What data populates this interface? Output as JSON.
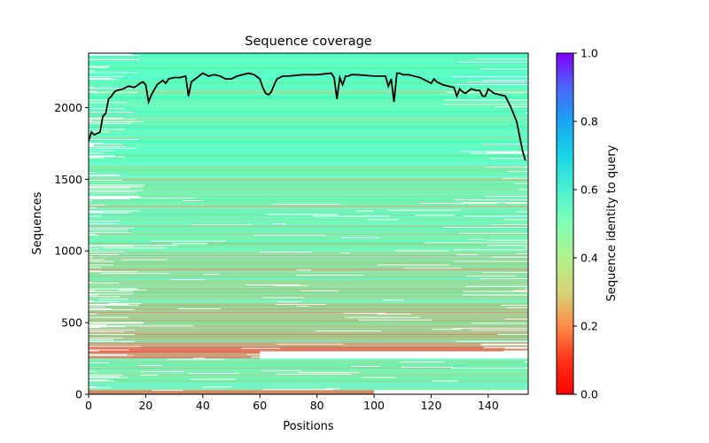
{
  "chart_data": {
    "type": "heatmap",
    "title": "Sequence coverage",
    "xlabel": "Positions",
    "ylabel": "Sequences",
    "xlim": [
      0,
      154
    ],
    "ylim": [
      0,
      2380
    ],
    "xticks": [
      0,
      20,
      40,
      60,
      80,
      100,
      120,
      140
    ],
    "yticks": [
      0,
      500,
      1000,
      1500,
      2000
    ],
    "grid": false,
    "colorbar": {
      "label": "Sequence identity to query",
      "colormap": "rainbow_r",
      "range": [
        0.0,
        1.0
      ],
      "ticks": [
        "0.0",
        "0.2",
        "0.4",
        "0.6",
        "0.8",
        "1.0"
      ],
      "placement": "right"
    },
    "identity_bands": [
      {
        "from": 0,
        "to": 30,
        "identity": 0.12,
        "span": [
          0,
          100
        ],
        "note": "short low-identity fragments at bottom"
      },
      {
        "from": 30,
        "to": 240,
        "identity": 0.36,
        "span": [
          0,
          154
        ]
      },
      {
        "from": 240,
        "to": 250,
        "identity": 0.55,
        "span": [
          0,
          154
        ]
      },
      {
        "from": 250,
        "to": 300,
        "identity": 0.12,
        "span": [
          0,
          60
        ]
      },
      {
        "from": 300,
        "to": 360,
        "identity": 0.15,
        "span": [
          0,
          154
        ]
      },
      {
        "from": 360,
        "to": 600,
        "identity": 0.25,
        "span": [
          0,
          154
        ]
      },
      {
        "from": 600,
        "to": 1000,
        "identity": 0.32,
        "span": [
          0,
          154
        ]
      },
      {
        "from": 1000,
        "to": 1600,
        "identity": 0.38,
        "span": [
          0,
          154
        ]
      },
      {
        "from": 1600,
        "to": 2380,
        "identity": 0.45,
        "span": [
          0,
          154
        ]
      }
    ],
    "series": [
      {
        "name": "coverage",
        "color": "#000000",
        "x": [
          0,
          1,
          2,
          3,
          4,
          5,
          6,
          7,
          8,
          9,
          10,
          12,
          14,
          16,
          18,
          19,
          20,
          21,
          22,
          24,
          26,
          27,
          28,
          30,
          32,
          34,
          35,
          36,
          38,
          40,
          42,
          44,
          46,
          48,
          50,
          52,
          54,
          56,
          58,
          60,
          61,
          62,
          63,
          64,
          65,
          66,
          68,
          70,
          75,
          80,
          85,
          86,
          87,
          88,
          89,
          90,
          91,
          92,
          94,
          100,
          104,
          105,
          106,
          107,
          108,
          109,
          110,
          112,
          116,
          118,
          120,
          121,
          122,
          124,
          126,
          128,
          129,
          130,
          131,
          132,
          134,
          136,
          137,
          138,
          139,
          140,
          142,
          146,
          148,
          150,
          151,
          152,
          153
        ],
        "y": [
          1770,
          1830,
          1810,
          1820,
          1830,
          1940,
          1960,
          2060,
          2080,
          2110,
          2120,
          2130,
          2150,
          2140,
          2170,
          2180,
          2160,
          2040,
          2090,
          2160,
          2190,
          2170,
          2200,
          2210,
          2210,
          2220,
          2080,
          2180,
          2210,
          2240,
          2220,
          2230,
          2220,
          2200,
          2200,
          2220,
          2230,
          2240,
          2230,
          2200,
          2140,
          2100,
          2090,
          2110,
          2160,
          2200,
          2220,
          2220,
          2230,
          2230,
          2240,
          2210,
          2060,
          2210,
          2160,
          2220,
          2220,
          2230,
          2230,
          2220,
          2220,
          2150,
          2200,
          2040,
          2240,
          2240,
          2230,
          2230,
          2210,
          2190,
          2170,
          2200,
          2180,
          2160,
          2150,
          2140,
          2080,
          2130,
          2110,
          2100,
          2130,
          2120,
          2120,
          2080,
          2080,
          2130,
          2100,
          2080,
          2000,
          1900,
          1800,
          1700,
          1630
        ]
      }
    ]
  }
}
